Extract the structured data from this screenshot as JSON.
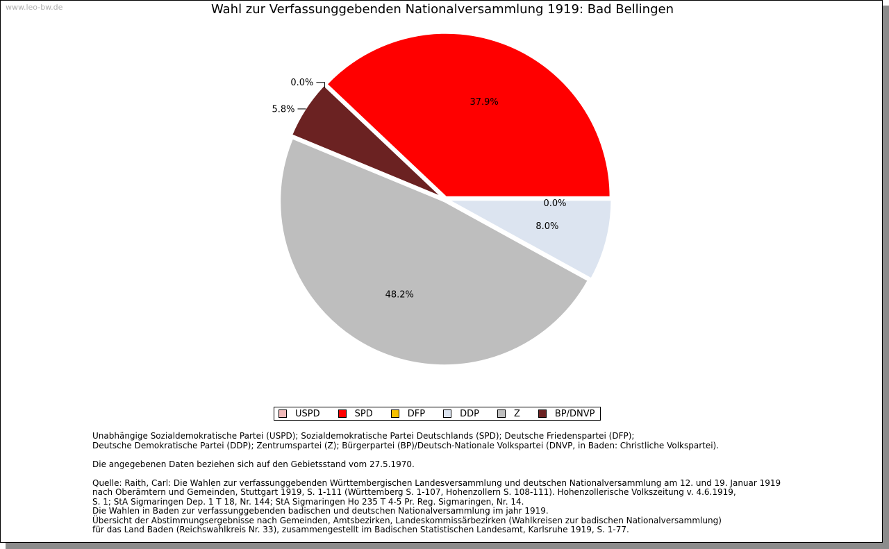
{
  "watermark": "www.leo-bw.de",
  "chart_data": {
    "type": "pie",
    "title": "Wahl zur Verfassunggebenden Nationalversammlung 1919: Bad Bellingen",
    "slices": [
      {
        "label": "SPD",
        "value": 37.9,
        "display": "37.9%",
        "color": "#ff0000"
      },
      {
        "label": "DFP",
        "value": 0.0,
        "display": "0.0%",
        "color": "#f5c000"
      },
      {
        "label": "BP/DNVP",
        "value": 5.8,
        "display": "5.8%",
        "color": "#6b2222"
      },
      {
        "label": "Z",
        "value": 48.2,
        "display": "48.2%",
        "color": "#bebebe"
      },
      {
        "label": "DDP",
        "value": 8.0,
        "display": "8.0%",
        "color": "#dce4f0"
      },
      {
        "label": "USPD",
        "value": 0.0,
        "display": "0.0%",
        "color": "#f0b8b8"
      }
    ],
    "legend": [
      "USPD",
      "SPD",
      "DFP",
      "DDP",
      "Z",
      "BP/DNVP"
    ],
    "legend_position": "bottom"
  },
  "notes": {
    "parties": "Unabhängige Sozialdemokratische Partei (USPD); Sozialdemokratische Partei Deutschlands (SPD); Deutsche Friedenspartei (DFP);\nDeutsche Demokratische Partei (DDP); Zentrumspartei (Z); Bürgerpartei (BP)/Deutsch-Nationale Volkspartei (DNVP, in Baden: Christliche Volkspartei).",
    "territory": "Die angegebenen Daten beziehen sich auf den Gebietsstand vom 27.5.1970.",
    "source": "Quelle: Raith, Carl: Die Wahlen zur verfassunggebenden Württembergischen Landesversammlung und deutschen Nationalversammlung am 12. und 19. Januar 1919\nnach Oberämtern und Gemeinden, Stuttgart 1919, S. 1-111 (Württemberg S. 1-107, Hohenzollern S. 108-111). Hohenzollerische Volkszeitung v. 4.6.1919,\nS. 1; StA Sigmaringen Dep. 1 T 18, Nr. 144; StA Sigmaringen Ho 235 T 4-5 Pr. Reg. Sigmaringen, Nr. 14.\nDie Wahlen in Baden zur verfassunggebenden badischen und deutschen Nationalversammlung im jahr 1919.\nÜbersicht der Abstimmungsergebnisse nach Gemeinden, Amtsbezirken, Landeskommissärbezirken (Wahlkreisen zur badischen Nationalversammlung)\nfür das Land Baden (Reichswahlkreis Nr. 33), zusammengestellt im Badischen Statistischen Landesamt, Karlsruhe 1919, S. 1-77."
  }
}
